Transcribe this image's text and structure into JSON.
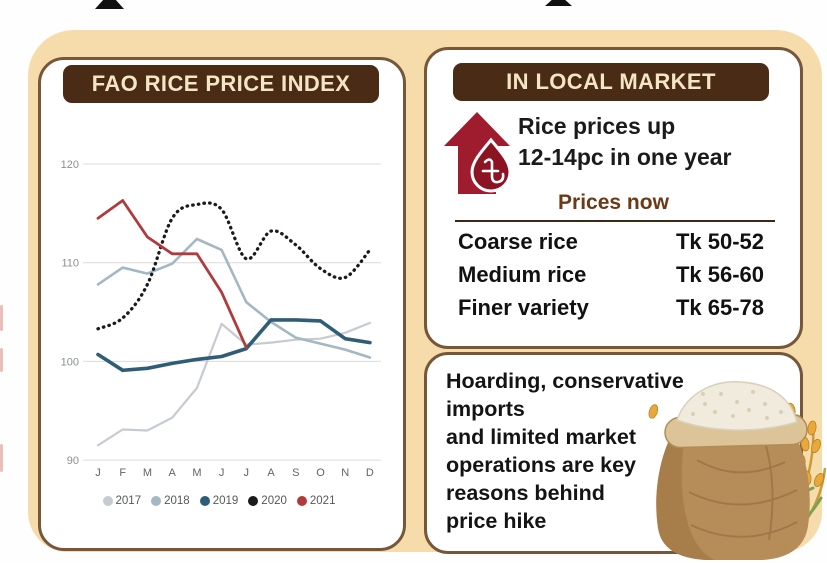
{
  "page_label": "Rice price infographic",
  "colors": {
    "card_bg": "#f7dcab",
    "panel_border": "#77573a",
    "header_bg": "#4a2b15",
    "header_text": "#f4e5c4",
    "accent_red": "#9e1c2e",
    "brown_text": "#6b3a17",
    "gridline": "#dcdcdc"
  },
  "chart_data": {
    "type": "line",
    "title": "FAO RICE PRICE INDEX",
    "x_labels": [
      "J",
      "F",
      "M",
      "A",
      "M",
      "J",
      "J",
      "A",
      "S",
      "O",
      "N",
      "D"
    ],
    "yticks": [
      120,
      110,
      100,
      90
    ],
    "ylim": [
      88,
      122
    ],
    "grid": "horizontal",
    "legend_position": "bottom",
    "series": [
      {
        "name": "2017",
        "color": "#c6cbd1",
        "style": "solid",
        "width": 2.2,
        "smooth": false,
        "values": [
          91.5,
          93.1,
          93.0,
          94.3,
          97.3,
          103.8,
          101.7,
          101.9,
          102.2,
          102.3,
          102.9,
          103.9
        ]
      },
      {
        "name": "2018",
        "color": "#a3b8c2",
        "style": "solid",
        "width": 2.6,
        "smooth": false,
        "values": [
          107.8,
          109.5,
          108.9,
          109.9,
          112.4,
          111.3,
          106.0,
          104.0,
          102.4,
          101.8,
          101.2,
          100.4
        ]
      },
      {
        "name": "2019",
        "color": "#2f5d77",
        "style": "solid",
        "width": 3.6,
        "smooth": false,
        "values": [
          100.7,
          99.1,
          99.3,
          99.8,
          100.2,
          100.5,
          101.3,
          104.2,
          104.2,
          104.1,
          102.3,
          101.9
        ]
      },
      {
        "name": "2020",
        "color": "#1b1b1b",
        "style": "dotted",
        "width": 3.3,
        "smooth": true,
        "values": [
          103.3,
          104.4,
          107.8,
          114.5,
          115.9,
          115.4,
          110.4,
          113.2,
          111.8,
          109.4,
          108.5,
          111.3
        ]
      },
      {
        "name": "2021",
        "color": "#b03a3c",
        "style": "solid",
        "width": 2.8,
        "smooth": false,
        "values": [
          114.5,
          116.3,
          112.6,
          110.9,
          110.9,
          107.0,
          101.4
        ]
      }
    ]
  },
  "left_panel": {
    "title": "FAO RICE PRICE INDEX"
  },
  "local_market": {
    "title": "IN LOCAL MARKET",
    "icon": "price-up-arrow-taka-icon",
    "headline_line1": "Rice prices up",
    "headline_line2": "12-14pc in one year",
    "subtitle": "Prices now",
    "rows": [
      {
        "label": "Coarse rice",
        "value": "Tk 50-52"
      },
      {
        "label": "Medium rice",
        "value": "Tk 56-60"
      },
      {
        "label": "Finer variety",
        "value": "Tk 65-78"
      }
    ]
  },
  "note_panel": {
    "illustration": "rice-sack-with-paddy",
    "lines": [
      "Hoarding, conservative imports",
      "and limited market",
      "operations are key",
      "reasons behind",
      "price hike"
    ]
  }
}
